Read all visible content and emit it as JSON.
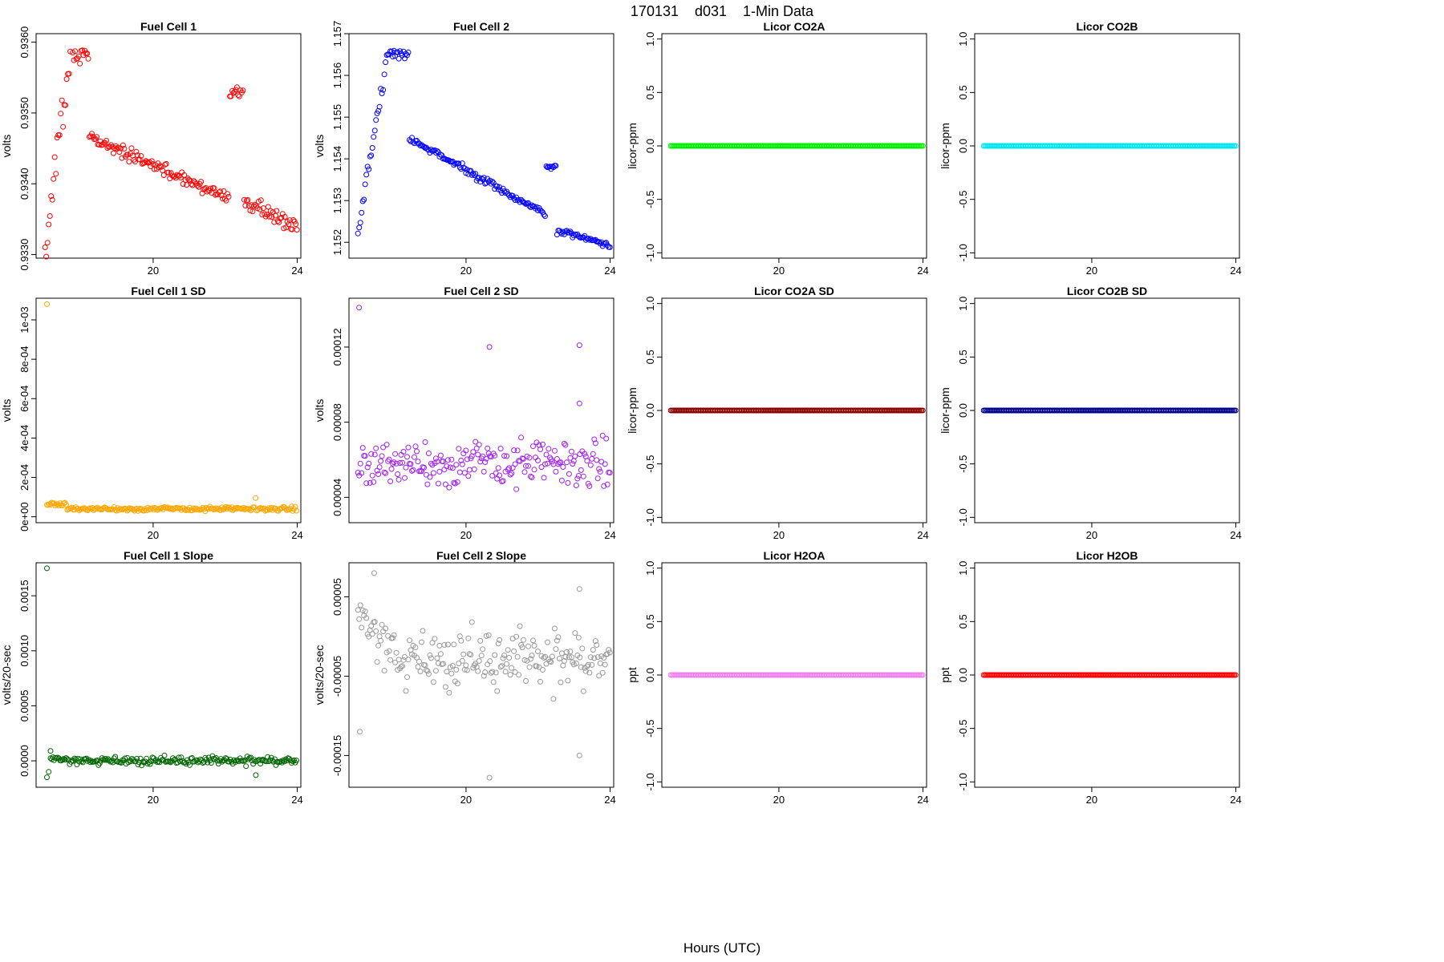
{
  "figure": {
    "title": "170131    d031    1-Min Data",
    "xlabel": "Hours (UTC)"
  },
  "chart_data": [
    {
      "type": "scatter",
      "title": "Fuel Cell 1",
      "ylabel": "volts",
      "color": "#ff0000",
      "xlim": [
        16.75,
        24.1
      ],
      "ylim": [
        0.93295,
        0.93612
      ],
      "xticks": [
        20,
        24
      ],
      "yticks": [
        0.933,
        0.934,
        0.935,
        0.936
      ],
      "ytick_labels": [
        "0.9330",
        "0.9340",
        "0.9350",
        "0.9360"
      ],
      "gen": "fc1"
    },
    {
      "type": "scatter",
      "title": "Fuel Cell 2",
      "ylabel": "volts",
      "color": "#0000ff",
      "xlim": [
        16.75,
        24.1
      ],
      "ylim": [
        1.15162,
        1.157
      ],
      "xticks": [
        20,
        24
      ],
      "yticks": [
        1.152,
        1.153,
        1.154,
        1.155,
        1.156,
        1.157
      ],
      "ytick_labels": [
        "1.152",
        "1.153",
        "1.154",
        "1.155",
        "1.156",
        "1.157"
      ],
      "gen": "fc2"
    },
    {
      "type": "scatter",
      "title": "Licor CO2A",
      "ylabel": "licor-ppm",
      "color": "#00ee00",
      "xlim": [
        16.75,
        24.1
      ],
      "ylim": [
        -1.05,
        1.05
      ],
      "xticks": [
        20,
        24
      ],
      "yticks": [
        -1.0,
        -0.5,
        0.0,
        0.5,
        1.0
      ],
      "ytick_labels": [
        "-1.0",
        "-0.5",
        "0.0",
        "0.5",
        "1.0"
      ],
      "gen": "zero"
    },
    {
      "type": "scatter",
      "title": "Licor CO2B",
      "ylabel": "licor-ppm",
      "color": "#00e5ee",
      "xlim": [
        16.75,
        24.1
      ],
      "ylim": [
        -1.05,
        1.05
      ],
      "xticks": [
        20,
        24
      ],
      "yticks": [
        -1.0,
        -0.5,
        0.0,
        0.5,
        1.0
      ],
      "ytick_labels": [
        "-1.0",
        "-0.5",
        "0.0",
        "0.5",
        "1.0"
      ],
      "gen": "zero"
    },
    {
      "type": "scatter",
      "title": "Fuel Cell 1 SD",
      "ylabel": "volts",
      "color": "#ffa500",
      "xlim": [
        16.75,
        24.1
      ],
      "ylim": [
        -3e-05,
        0.00111
      ],
      "xticks": [
        20,
        24
      ],
      "yticks": [
        0,
        0.0002,
        0.0004,
        0.0006,
        0.0008,
        0.001
      ],
      "ytick_labels": [
        "0e+00",
        "2e-04",
        "4e-04",
        "6e-04",
        "8e-04",
        "1e-03"
      ],
      "gen": "fc1sd"
    },
    {
      "type": "scatter",
      "title": "Fuel Cell 2 SD",
      "ylabel": "volts",
      "color": "#a020f0",
      "xlim": [
        16.75,
        24.1
      ],
      "ylim": [
        2.65e-05,
        0.000146
      ],
      "xticks": [
        20,
        24
      ],
      "yticks": [
        4e-05,
        8e-05,
        0.00012
      ],
      "ytick_labels": [
        "0.00004",
        "0.00008",
        "0.00012"
      ],
      "gen": "fc2sd"
    },
    {
      "type": "scatter",
      "title": "Licor CO2A SD",
      "ylabel": "licor-ppm",
      "color": "#8b0000",
      "xlim": [
        16.75,
        24.1
      ],
      "ylim": [
        -1.05,
        1.05
      ],
      "xticks": [
        20,
        24
      ],
      "yticks": [
        -1.0,
        -0.5,
        0.0,
        0.5,
        1.0
      ],
      "ytick_labels": [
        "-1.0",
        "-0.5",
        "0.0",
        "0.5",
        "1.0"
      ],
      "gen": "zero"
    },
    {
      "type": "scatter",
      "title": "Licor CO2B SD",
      "ylabel": "licor-ppm",
      "color": "#00008b",
      "xlim": [
        16.75,
        24.1
      ],
      "ylim": [
        -1.05,
        1.05
      ],
      "xticks": [
        20,
        24
      ],
      "yticks": [
        -1.0,
        -0.5,
        0.0,
        0.5,
        1.0
      ],
      "ytick_labels": [
        "-1.0",
        "-0.5",
        "0.0",
        "0.5",
        "1.0"
      ],
      "gen": "zero"
    },
    {
      "type": "scatter",
      "title": "Fuel Cell 1 Slope",
      "ylabel": "volts/20-sec",
      "color": "#006400",
      "xlim": [
        16.75,
        24.1
      ],
      "ylim": [
        -0.00024,
        0.0018
      ],
      "xticks": [
        20,
        24
      ],
      "yticks": [
        0,
        0.0005,
        0.001,
        0.0015
      ],
      "ytick_labels": [
        "0.0000",
        "0.0005",
        "0.0010",
        "0.0015"
      ],
      "gen": "fc1sl"
    },
    {
      "type": "scatter",
      "title": "Fuel Cell 2 Slope",
      "ylabel": "volts/20-sec",
      "color": "#999999",
      "xlim": [
        16.75,
        24.1
      ],
      "ylim": [
        -0.00019,
        9.3e-05
      ],
      "xticks": [
        20,
        24
      ],
      "yticks": [
        -0.00015,
        -5e-05,
        5e-05
      ],
      "ytick_labels": [
        "-0.00015",
        "-0.00005",
        "0.00005"
      ],
      "gen": "fc2sl"
    },
    {
      "type": "scatter",
      "title": "Licor H2OA",
      "ylabel": "ppt",
      "color": "#ee82ee",
      "xlim": [
        16.75,
        24.1
      ],
      "ylim": [
        -1.05,
        1.05
      ],
      "xticks": [
        20,
        24
      ],
      "yticks": [
        -1.0,
        -0.5,
        0.0,
        0.5,
        1.0
      ],
      "ytick_labels": [
        "-1.0",
        "-0.5",
        "0.0",
        "0.5",
        "1.0"
      ],
      "gen": "zero"
    },
    {
      "type": "scatter",
      "title": "Licor H2OB",
      "ylabel": "ppt",
      "color": "#ff0000",
      "xlim": [
        16.75,
        24.1
      ],
      "ylim": [
        -1.05,
        1.05
      ],
      "xticks": [
        20,
        24
      ],
      "yticks": [
        -1.0,
        -0.5,
        0.0,
        0.5,
        1.0
      ],
      "ytick_labels": [
        "-1.0",
        "-0.5",
        "0.0",
        "0.5",
        "1.0"
      ],
      "gen": "zero"
    }
  ]
}
